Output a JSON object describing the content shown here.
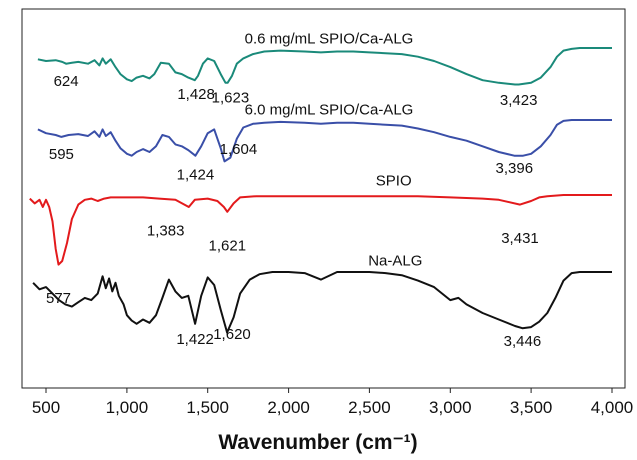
{
  "chart_data": {
    "type": "line",
    "xlabel": "Wavenumber (cm⁻¹)",
    "xlim": [
      400,
      4000
    ],
    "xticks": [
      "500",
      "1,000",
      "1,500",
      "2,000",
      "2,500",
      "3,000",
      "3,500",
      "4,000"
    ],
    "ylabel": "",
    "grid": false,
    "series": [
      {
        "name": "0.6 mg/mL SPIO/Ca-ALG",
        "color": "#1a8a7a",
        "x": [
          450,
          500,
          560,
          600,
          624,
          660,
          700,
          760,
          800,
          830,
          850,
          870,
          900,
          930,
          960,
          1000,
          1030,
          1060,
          1100,
          1140,
          1170,
          1210,
          1260,
          1300,
          1340,
          1380,
          1420,
          1440,
          1470,
          1500,
          1540,
          1580,
          1610,
          1623,
          1650,
          1680,
          1720,
          1780,
          1850,
          1950,
          2100,
          2200,
          2300,
          2400,
          2500,
          2600,
          2700,
          2800,
          2900,
          3000,
          3100,
          3200,
          3300,
          3400,
          3423,
          3500,
          3560,
          3620,
          3660,
          3700,
          3750,
          3800,
          3900,
          4000
        ],
        "y": [
          0.87,
          0.85,
          0.86,
          0.84,
          0.82,
          0.83,
          0.84,
          0.82,
          0.86,
          0.8,
          0.88,
          0.82,
          0.87,
          0.78,
          0.7,
          0.64,
          0.62,
          0.66,
          0.68,
          0.65,
          0.7,
          0.83,
          0.82,
          0.72,
          0.7,
          0.66,
          0.63,
          0.68,
          0.82,
          0.88,
          0.85,
          0.7,
          0.6,
          0.6,
          0.68,
          0.82,
          0.88,
          0.93,
          0.96,
          0.97,
          0.96,
          0.95,
          0.96,
          0.96,
          0.95,
          0.94,
          0.93,
          0.9,
          0.85,
          0.78,
          0.7,
          0.63,
          0.6,
          0.58,
          0.58,
          0.6,
          0.66,
          0.78,
          0.9,
          0.97,
          0.99,
          1.0,
          1.0,
          1.0
        ]
      },
      {
        "name": "6.0 mg/mL SPIO/Ca-ALG",
        "color": "#3a4fa8",
        "x": [
          450,
          500,
          560,
          595,
          640,
          700,
          760,
          800,
          830,
          850,
          870,
          900,
          930,
          960,
          1000,
          1030,
          1060,
          1100,
          1140,
          1180,
          1220,
          1260,
          1300,
          1340,
          1380,
          1424,
          1460,
          1500,
          1540,
          1580,
          1604,
          1640,
          1680,
          1720,
          1780,
          1850,
          1950,
          2100,
          2200,
          2300,
          2400,
          2500,
          2600,
          2700,
          2800,
          2900,
          3000,
          3100,
          3200,
          3300,
          3396,
          3450,
          3500,
          3560,
          3620,
          3660,
          3700,
          3750,
          3800,
          3900,
          4000
        ],
        "y": [
          0.9,
          0.86,
          0.84,
          0.82,
          0.84,
          0.85,
          0.83,
          0.88,
          0.82,
          0.9,
          0.83,
          0.87,
          0.78,
          0.7,
          0.64,
          0.62,
          0.66,
          0.69,
          0.66,
          0.72,
          0.84,
          0.82,
          0.74,
          0.72,
          0.68,
          0.62,
          0.72,
          0.86,
          0.9,
          0.7,
          0.56,
          0.6,
          0.8,
          0.92,
          0.96,
          0.97,
          0.98,
          0.97,
          0.96,
          0.97,
          0.97,
          0.96,
          0.95,
          0.94,
          0.91,
          0.87,
          0.82,
          0.78,
          0.72,
          0.66,
          0.62,
          0.62,
          0.64,
          0.72,
          0.84,
          0.95,
          0.99,
          1.0,
          1.0,
          1.0,
          1.0
        ]
      },
      {
        "name": "SPIO",
        "color": "#e31a1c",
        "x": [
          400,
          430,
          460,
          480,
          500,
          520,
          540,
          560,
          577,
          600,
          630,
          660,
          700,
          740,
          780,
          820,
          860,
          900,
          950,
          1000,
          1100,
          1200,
          1300,
          1383,
          1420,
          1500,
          1560,
          1600,
          1621,
          1660,
          1700,
          1800,
          1900,
          2000,
          2200,
          2400,
          2600,
          2800,
          3000,
          3200,
          3300,
          3431,
          3500,
          3550,
          3600,
          3700,
          3800,
          3900,
          4000
        ],
        "y": [
          0.97,
          0.93,
          0.96,
          0.9,
          0.96,
          0.9,
          0.78,
          0.55,
          0.42,
          0.45,
          0.6,
          0.8,
          0.92,
          0.96,
          0.97,
          0.95,
          0.97,
          0.98,
          0.98,
          0.98,
          0.98,
          0.97,
          0.96,
          0.9,
          0.96,
          0.97,
          0.95,
          0.9,
          0.86,
          0.93,
          0.98,
          0.99,
          0.99,
          0.99,
          0.99,
          0.99,
          0.99,
          0.99,
          0.98,
          0.97,
          0.96,
          0.92,
          0.95,
          0.98,
          0.99,
          1.0,
          1.0,
          1.0,
          1.0
        ]
      },
      {
        "name": "Na-ALG",
        "color": "#111111",
        "x": [
          420,
          460,
          500,
          540,
          580,
          620,
          660,
          700,
          740,
          780,
          820,
          850,
          870,
          890,
          910,
          930,
          950,
          980,
          1000,
          1030,
          1060,
          1100,
          1140,
          1180,
          1220,
          1260,
          1300,
          1340,
          1380,
          1422,
          1460,
          1500,
          1540,
          1580,
          1620,
          1660,
          1700,
          1760,
          1820,
          1900,
          2000,
          2100,
          2200,
          2300,
          2400,
          2500,
          2600,
          2700,
          2800,
          2900,
          3000,
          3050,
          3100,
          3200,
          3300,
          3400,
          3446,
          3500,
          3550,
          3600,
          3650,
          3700,
          3750,
          3800,
          3900,
          4000
        ],
        "y": [
          0.9,
          0.84,
          0.86,
          0.8,
          0.74,
          0.7,
          0.68,
          0.72,
          0.76,
          0.74,
          0.8,
          0.96,
          0.85,
          0.94,
          0.82,
          0.9,
          0.78,
          0.7,
          0.6,
          0.55,
          0.52,
          0.56,
          0.53,
          0.6,
          0.76,
          0.93,
          0.82,
          0.76,
          0.78,
          0.52,
          0.78,
          0.95,
          0.88,
          0.65,
          0.44,
          0.58,
          0.8,
          0.93,
          0.98,
          1.0,
          1.0,
          0.99,
          0.93,
          1.0,
          1.0,
          1.0,
          0.99,
          0.97,
          0.92,
          0.86,
          0.74,
          0.76,
          0.7,
          0.62,
          0.56,
          0.5,
          0.48,
          0.49,
          0.54,
          0.62,
          0.76,
          0.92,
          0.99,
          1.0,
          1.0,
          1.0
        ]
      }
    ],
    "series_labels": [
      {
        "series": 0,
        "text": "0.6 mg/mL SPIO/Ca-ALG",
        "x": 2250,
        "y": 1.05
      },
      {
        "series": 1,
        "text": "6.0 mg/mL SPIO/Ca-ALG",
        "x": 2250,
        "y": 1.06
      },
      {
        "series": 2,
        "text": "SPIO",
        "x": 2650,
        "y": 1.08
      },
      {
        "series": 3,
        "text": "Na-ALG",
        "x": 2660,
        "y": 1.06
      }
    ],
    "annotations": [
      {
        "series": 0,
        "text": "624",
        "x": 624,
        "dy": -0.2
      },
      {
        "series": 0,
        "text": "1,428",
        "x": 1428,
        "dy": -0.18
      },
      {
        "series": 0,
        "text": "1,623",
        "x": 1640,
        "dy": -0.22
      },
      {
        "series": 0,
        "text": "3,423",
        "x": 3423,
        "dy": -0.18
      },
      {
        "series": 1,
        "text": "595",
        "x": 595,
        "dy": -0.18
      },
      {
        "series": 1,
        "text": "1,424",
        "x": 1424,
        "dy": -0.2
      },
      {
        "series": 1,
        "text": "1,604",
        "x": 1690,
        "dy": -0.14
      },
      {
        "series": 1,
        "text": "3,396",
        "x": 3396,
        "dy": -0.13
      },
      {
        "series": 2,
        "text": "1,383",
        "x": 1240,
        "dy": -0.26
      },
      {
        "series": 2,
        "text": "1,621",
        "x": 1621,
        "dy": -0.28
      },
      {
        "series": 2,
        "text": "3,431",
        "x": 3431,
        "dy": -0.28
      },
      {
        "series": 2,
        "text": "577",
        "x": 577,
        "dy": -0.28
      },
      {
        "series": 3,
        "text": "1,422",
        "x": 1422,
        "dy": -0.14
      },
      {
        "series": 3,
        "text": "1,620",
        "x": 1650,
        "dy": -0.12
      },
      {
        "series": 3,
        "text": "3,446",
        "x": 3446,
        "dy": -0.12
      }
    ]
  }
}
